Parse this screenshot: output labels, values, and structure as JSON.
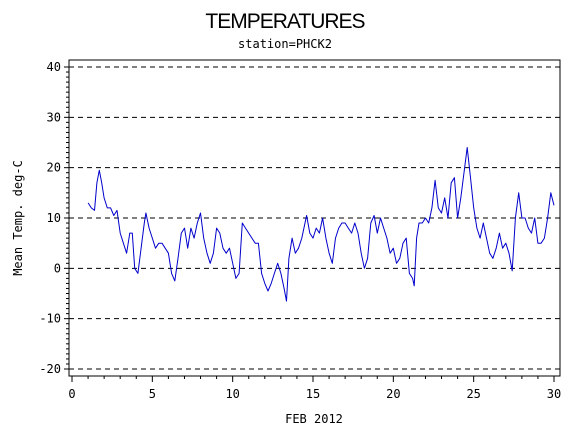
{
  "chart_data": {
    "type": "line",
    "title": "TEMPERATURES",
    "subtitle": "station=PHCK2",
    "xlabel": "FEB 2012",
    "ylabel": "Mean Temp. deg-C",
    "xlim": [
      0,
      30
    ],
    "ylim": [
      -20,
      40
    ],
    "x_ticks": [
      "0",
      "5",
      "10",
      "15",
      "20",
      "25",
      "30"
    ],
    "y_ticks": [
      "-20",
      "-10",
      "0",
      "10",
      "20",
      "30",
      "40"
    ],
    "grid": "horizontal dashed lines at major y ticks",
    "series": [
      {
        "color": "#0000cc",
        "points": [
          [
            1.0,
            13
          ],
          [
            1.2,
            12
          ],
          [
            1.4,
            11.5
          ],
          [
            1.55,
            17
          ],
          [
            1.7,
            19.5
          ],
          [
            1.85,
            17
          ],
          [
            2.0,
            14
          ],
          [
            2.2,
            12
          ],
          [
            2.4,
            12
          ],
          [
            2.6,
            10.5
          ],
          [
            2.8,
            11.5
          ],
          [
            3.0,
            7
          ],
          [
            3.2,
            5
          ],
          [
            3.4,
            3
          ],
          [
            3.6,
            7
          ],
          [
            3.75,
            7
          ],
          [
            3.9,
            0
          ],
          [
            4.1,
            -1
          ],
          [
            4.3,
            4
          ],
          [
            4.5,
            9
          ],
          [
            4.6,
            11
          ],
          [
            4.8,
            8
          ],
          [
            5.0,
            6
          ],
          [
            5.2,
            4
          ],
          [
            5.4,
            5
          ],
          [
            5.6,
            5
          ],
          [
            5.8,
            4
          ],
          [
            6.0,
            3
          ],
          [
            6.2,
            -1
          ],
          [
            6.4,
            -2.5
          ],
          [
            6.6,
            2
          ],
          [
            6.8,
            7
          ],
          [
            7.0,
            8
          ],
          [
            7.2,
            4
          ],
          [
            7.4,
            8
          ],
          [
            7.6,
            6
          ],
          [
            7.8,
            9
          ],
          [
            8.0,
            11
          ],
          [
            8.2,
            6
          ],
          [
            8.4,
            3
          ],
          [
            8.6,
            1
          ],
          [
            8.8,
            3
          ],
          [
            9.0,
            8
          ],
          [
            9.2,
            7
          ],
          [
            9.4,
            4
          ],
          [
            9.6,
            3
          ],
          [
            9.8,
            4
          ],
          [
            10.0,
            1
          ],
          [
            10.2,
            -2
          ],
          [
            10.4,
            -1
          ],
          [
            10.6,
            9
          ],
          [
            10.8,
            8
          ],
          [
            11.0,
            7
          ],
          [
            11.2,
            6
          ],
          [
            11.4,
            5
          ],
          [
            11.6,
            5
          ],
          [
            11.8,
            -1
          ],
          [
            12.0,
            -3
          ],
          [
            12.2,
            -4.5
          ],
          [
            12.4,
            -3
          ],
          [
            12.6,
            -1
          ],
          [
            12.8,
            1
          ],
          [
            13.0,
            -1
          ],
          [
            13.2,
            -4
          ],
          [
            13.35,
            -6.5
          ],
          [
            13.5,
            2
          ],
          [
            13.7,
            6
          ],
          [
            13.9,
            3
          ],
          [
            14.1,
            4
          ],
          [
            14.3,
            6
          ],
          [
            14.5,
            9
          ],
          [
            14.6,
            10.5
          ],
          [
            14.8,
            7
          ],
          [
            15.0,
            6
          ],
          [
            15.2,
            8
          ],
          [
            15.4,
            7
          ],
          [
            15.6,
            10
          ],
          [
            15.8,
            6
          ],
          [
            16.0,
            3
          ],
          [
            16.2,
            1
          ],
          [
            16.4,
            6
          ],
          [
            16.6,
            8
          ],
          [
            16.8,
            9
          ],
          [
            17.0,
            9
          ],
          [
            17.2,
            8
          ],
          [
            17.4,
            7
          ],
          [
            17.6,
            9
          ],
          [
            17.8,
            7
          ],
          [
            18.0,
            3
          ],
          [
            18.2,
            0
          ],
          [
            18.4,
            2
          ],
          [
            18.6,
            9
          ],
          [
            18.8,
            10.5
          ],
          [
            19.0,
            7
          ],
          [
            19.2,
            10
          ],
          [
            19.4,
            8
          ],
          [
            19.6,
            6
          ],
          [
            19.8,
            3
          ],
          [
            20.0,
            4
          ],
          [
            20.2,
            1
          ],
          [
            20.4,
            2
          ],
          [
            20.6,
            5
          ],
          [
            20.8,
            6
          ],
          [
            21.0,
            -1
          ],
          [
            21.2,
            -2
          ],
          [
            21.3,
            -3.5
          ],
          [
            21.45,
            6
          ],
          [
            21.6,
            9
          ],
          [
            21.8,
            9
          ],
          [
            22.0,
            10
          ],
          [
            22.2,
            9
          ],
          [
            22.4,
            12
          ],
          [
            22.6,
            17.5
          ],
          [
            22.8,
            12
          ],
          [
            23.0,
            11
          ],
          [
            23.2,
            14
          ],
          [
            23.4,
            10
          ],
          [
            23.6,
            17
          ],
          [
            23.8,
            18
          ],
          [
            24.0,
            10
          ],
          [
            24.2,
            14
          ],
          [
            24.4,
            19
          ],
          [
            24.6,
            24
          ],
          [
            24.8,
            18
          ],
          [
            25.0,
            12
          ],
          [
            25.2,
            8
          ],
          [
            25.4,
            6
          ],
          [
            25.6,
            9
          ],
          [
            25.8,
            6
          ],
          [
            26.0,
            3
          ],
          [
            26.2,
            2
          ],
          [
            26.4,
            4
          ],
          [
            26.6,
            7
          ],
          [
            26.8,
            4
          ],
          [
            27.0,
            5
          ],
          [
            27.2,
            3
          ],
          [
            27.4,
            -0.5
          ],
          [
            27.6,
            10
          ],
          [
            27.8,
            15
          ],
          [
            28.0,
            10
          ],
          [
            28.2,
            10
          ],
          [
            28.4,
            8
          ],
          [
            28.6,
            7
          ],
          [
            28.8,
            10
          ],
          [
            29.0,
            5
          ],
          [
            29.2,
            5
          ],
          [
            29.4,
            6
          ],
          [
            29.6,
            10
          ],
          [
            29.8,
            15
          ],
          [
            30.0,
            12.5
          ]
        ]
      }
    ]
  }
}
